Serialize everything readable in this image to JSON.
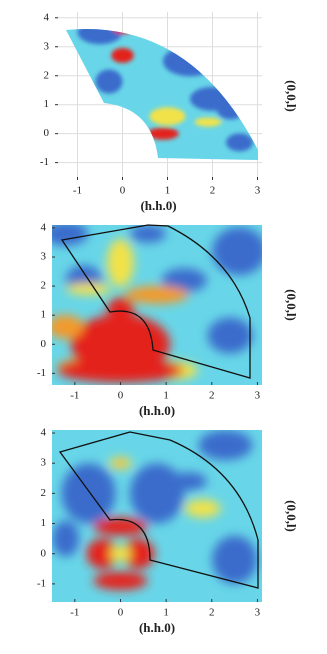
{
  "chart_data": [
    {
      "type": "heatmap",
      "xlabel": "(h.h.0)",
      "ylabel": "(0,0,l)",
      "xlim": [
        -1.5,
        3.1
      ],
      "ylim": [
        -1.6,
        4.2
      ],
      "xticks": [
        -1,
        0,
        1,
        2,
        3
      ],
      "yticks": [
        -1,
        0,
        1,
        2,
        3,
        4
      ],
      "grid": true
    },
    {
      "type": "heatmap",
      "xlabel": "(h.h.0)",
      "ylabel": "(0,0,l)",
      "xlim": [
        -1.5,
        3.1
      ],
      "ylim": [
        -1.4,
        4.1
      ],
      "xticks": [
        -1,
        0,
        1,
        2,
        3
      ],
      "yticks": [
        -1,
        0,
        1,
        2,
        3,
        4
      ],
      "grid": false
    },
    {
      "type": "heatmap",
      "xlabel": "(h.h.0)",
      "ylabel": "(0,0,l)",
      "xlim": [
        -1.5,
        3.1
      ],
      "ylim": [
        -1.6,
        4.1
      ],
      "xticks": [
        -1,
        0,
        1,
        2,
        3
      ],
      "yticks": [
        -1,
        0,
        1,
        2,
        3,
        4
      ],
      "grid": false
    }
  ]
}
